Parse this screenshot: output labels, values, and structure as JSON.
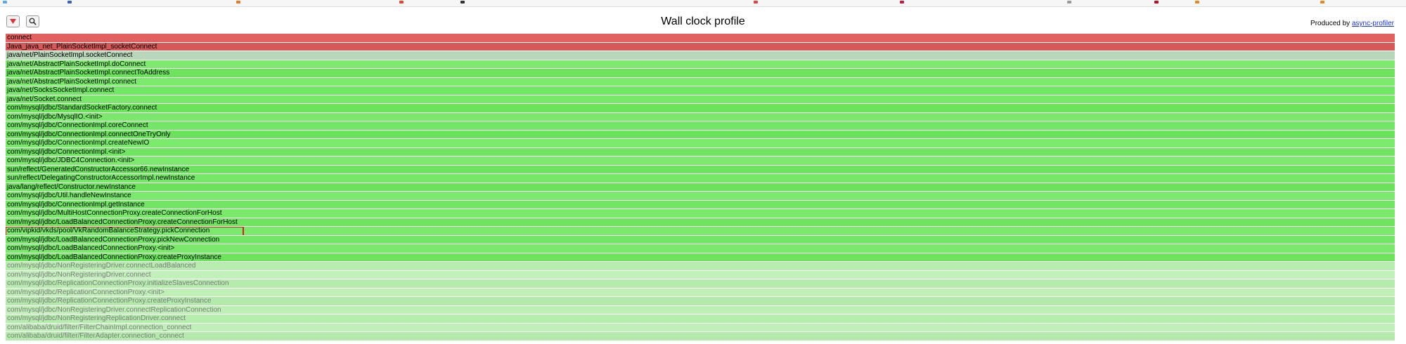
{
  "toolbar": {
    "reverse_icon": "triangle-down-icon",
    "search_icon": "magnifier-icon"
  },
  "header": {
    "title": "Wall clock profile",
    "produced_by_prefix": "Produced by ",
    "produced_by_link": "async-profiler"
  },
  "colors": {
    "accent_red": "#d32020",
    "link_blue": "#1a35c9"
  },
  "frames": [
    {
      "label": "connect",
      "color": "#e26060"
    },
    {
      "label": "Java_java_net_PlainSocketImpl_socketConnect",
      "color": "#d55959"
    },
    {
      "label": "java/net/PlainSocketImpl.socketConnect",
      "color": "#b8d6b8"
    },
    {
      "label": "java/net/AbstractPlainSocketImpl.doConnect",
      "color": "#7ee76e"
    },
    {
      "label": "java/net/AbstractPlainSocketImpl.connectToAddress",
      "color": "#6fe35f"
    },
    {
      "label": "java/net/AbstractPlainSocketImpl.connect",
      "color": "#7ae96c"
    },
    {
      "label": "java/net/SocksSocketImpl.connect",
      "color": "#72e665"
    },
    {
      "label": "java/net/Socket.connect",
      "color": "#79e86a"
    },
    {
      "label": "com/mysql/jdbc/StandardSocketFactory.connect",
      "color": "#6de35c"
    },
    {
      "label": "com/mysql/jdbc/MysqlIO.<init>",
      "color": "#7be86d"
    },
    {
      "label": "com/mysql/jdbc/ConnectionImpl.coreConnect",
      "color": "#74e667"
    },
    {
      "label": "com/mysql/jdbc/ConnectionImpl.connectOneTryOnly",
      "color": "#6ce15d"
    },
    {
      "label": "com/mysql/jdbc/ConnectionImpl.createNewIO",
      "color": "#7ae96c"
    },
    {
      "label": "com/mysql/jdbc/ConnectionImpl.<init>",
      "color": "#71e463"
    },
    {
      "label": "com/mysql/jdbc/JDBC4Connection.<init>",
      "color": "#7ce86e"
    },
    {
      "label": "sun/reflect/GeneratedConstructorAccessor66.newInstance",
      "color": "#6ee35f"
    },
    {
      "label": "sun/reflect/DelegatingConstructorAccessorImpl.newInstance",
      "color": "#76e769"
    },
    {
      "label": "java/lang/reflect/Constructor.newInstance",
      "color": "#6be15c"
    },
    {
      "label": "com/mysql/jdbc/Util.handleNewInstance",
      "color": "#7be96d"
    },
    {
      "label": "com/mysql/jdbc/ConnectionImpl.getInstance",
      "color": "#72e565"
    },
    {
      "label": "com/mysql/jdbc/MultiHostConnectionProxy.createConnectionForHost",
      "color": "#79e86b"
    },
    {
      "label": "com/mysql/jdbc/LoadBalancedConnectionProxy.createConnectionForHost",
      "color": "#6fe360"
    },
    {
      "label": "com/vipkid/vkds/pool/VkRandomBalanceStrategy.pickConnection",
      "color": "#7ae96c",
      "selected": true
    },
    {
      "label": "com/mysql/jdbc/LoadBalancedConnectionProxy.pickNewConnection",
      "color": "#74e667"
    },
    {
      "label": "com/mysql/jdbc/LoadBalancedConnectionProxy.<init>",
      "color": "#7be86d"
    },
    {
      "label": "com/mysql/jdbc/LoadBalancedConnectionProxy.createProxyInstance",
      "color": "#6de35e"
    },
    {
      "label": "com/mysql/jdbc/NonRegisteringDriver.connectLoadBalanced",
      "color": "#b7ecaf",
      "faded": true
    },
    {
      "label": "com/mysql/jdbc/NonRegisteringDriver.connect",
      "color": "#c2f0bb",
      "faded": true
    },
    {
      "label": "com/mysql/jdbc/ReplicationConnectionProxy.initializeSlavesConnection",
      "color": "#b5ebad",
      "faded": true
    },
    {
      "label": "com/mysql/jdbc/ReplicationConnectionProxy.<init>",
      "color": "#c0efb8",
      "faded": true
    },
    {
      "label": "com/mysql/jdbc/ReplicationConnectionProxy.createProxyInstance",
      "color": "#b3eaab",
      "faded": true
    },
    {
      "label": "com/mysql/jdbc/NonRegisteringDriver.connectReplicationConnection",
      "color": "#bfeeb7",
      "faded": true
    },
    {
      "label": "com/mysql/jdbc/NonRegisteringReplicationDriver.connect",
      "color": "#b6ecae",
      "faded": true
    },
    {
      "label": "com/alibaba/druid/filter/FilterChainImpl.connection_connect",
      "color": "#c1efb9",
      "faded": true
    },
    {
      "label": "com/alibaba/druid/filter/FilterAdapter.connection_connect",
      "color": "#b4ebac",
      "faded": true
    }
  ]
}
